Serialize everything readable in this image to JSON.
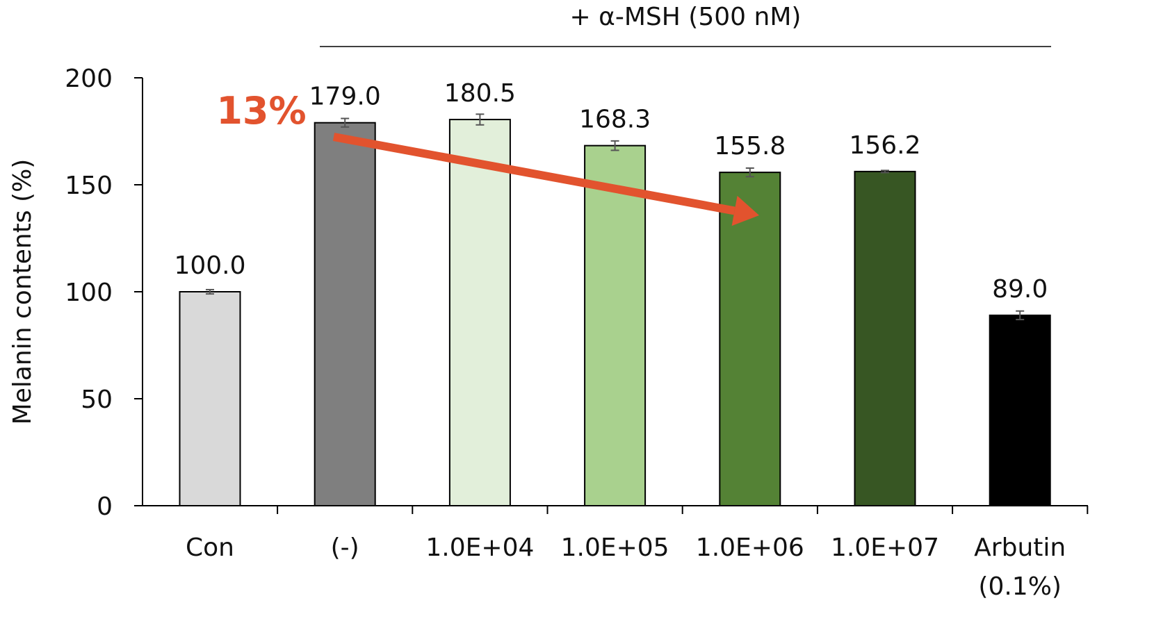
{
  "chart_data": {
    "type": "bar",
    "ylabel": "Melanin contents (%)",
    "ylim": [
      0,
      200
    ],
    "yticks": [
      0,
      50,
      100,
      150,
      200
    ],
    "group_label": "+ α-MSH (500 nM)",
    "categories": [
      {
        "lines": [
          "Con"
        ],
        "value": 100.0,
        "label": "100.0",
        "error": 1.0,
        "color": "#d9d9d9"
      },
      {
        "lines": [
          "(-)"
        ],
        "value": 179.0,
        "label": "179.0",
        "error": 2.0,
        "color": "#7f7f7f"
      },
      {
        "lines": [
          "1.0E+04"
        ],
        "value": 180.5,
        "label": "180.5",
        "error": 2.5,
        "color": "#e2efda"
      },
      {
        "lines": [
          "1.0E+05"
        ],
        "value": 168.3,
        "label": "168.3",
        "error": 2.2,
        "color": "#a9d18e"
      },
      {
        "lines": [
          "1.0E+06"
        ],
        "value": 155.8,
        "label": "155.8",
        "error": 2.0,
        "color": "#548235"
      },
      {
        "lines": [
          "1.0E+07"
        ],
        "value": 156.2,
        "label": "156.2",
        "error": 0.5,
        "color": "#375623"
      },
      {
        "lines": [
          "Arbutin",
          "(0.1%)"
        ],
        "value": 89.0,
        "label": "89.0",
        "error": 2.0,
        "color": "#000000"
      }
    ],
    "annotation": {
      "text": "13%",
      "color": "#e2532e",
      "from_category": 1,
      "to_category": 4
    }
  }
}
